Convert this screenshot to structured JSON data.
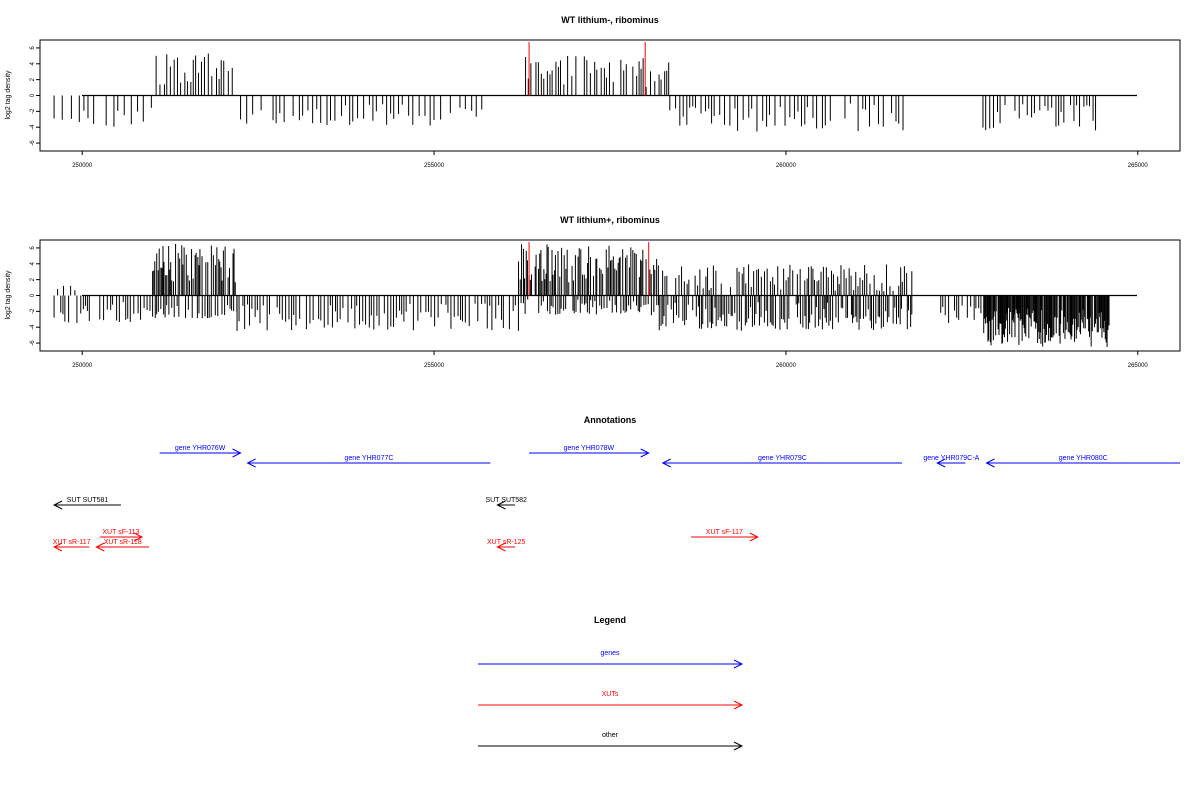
{
  "chart_data": [
    {
      "type": "bar",
      "title": "WT lithium-, ribominus",
      "ylabel": "log2 tag density",
      "xlabel": "",
      "xlim": [
        249400,
        265600
      ],
      "ylim": [
        -7,
        7
      ],
      "yticks": [
        -6,
        -4,
        -2,
        0,
        2,
        4,
        6
      ],
      "xticks": [
        250000,
        255000,
        260000,
        265000
      ],
      "markers": [
        256350,
        258000
      ],
      "colors": {
        "bars": "#000000",
        "markers": "#ff0000",
        "baseline": "#000000"
      },
      "positive_regions": [
        {
          "start": 251050,
          "end": 252170,
          "peak": 5.3,
          "step": 50,
          "min": 1.0
        },
        {
          "start": 256300,
          "end": 258350,
          "peak": 5.0,
          "step": 45,
          "min": 1.0
        }
      ],
      "negative_regions": [
        {
          "start": 249600,
          "end": 251000,
          "peak": -4.0,
          "step": 90,
          "min": -1.0
        },
        {
          "start": 252250,
          "end": 255700,
          "peak": -3.8,
          "step": 70,
          "min": -1.0
        },
        {
          "start": 258350,
          "end": 261800,
          "peak": -4.7,
          "step": 60,
          "min": -1.0
        },
        {
          "start": 262800,
          "end": 264400,
          "peak": -4.4,
          "step": 55,
          "min": -1.0
        }
      ],
      "seed": 7
    },
    {
      "type": "bar",
      "title": "WT lithium+, ribominus",
      "ylabel": "log2 tag density",
      "xlabel": "",
      "xlim": [
        249400,
        265600
      ],
      "ylim": [
        -7,
        7
      ],
      "yticks": [
        -6,
        -4,
        -2,
        0,
        2,
        4,
        6
      ],
      "xticks": [
        250000,
        255000,
        260000,
        265000
      ],
      "markers": [
        256350,
        258050
      ],
      "colors": {
        "bars": "#000000",
        "markers": "#ff0000",
        "baseline": "#000000"
      },
      "positive_regions": [
        {
          "start": 249650,
          "end": 250050,
          "peak": 1.5,
          "step": 80,
          "min": 0.3
        },
        {
          "start": 251000,
          "end": 252200,
          "peak": 6.5,
          "step": 22,
          "min": 1.5
        },
        {
          "start": 256200,
          "end": 258200,
          "peak": 6.5,
          "step": 20,
          "min": 1.5
        },
        {
          "start": 258200,
          "end": 261800,
          "peak": 4.0,
          "step": 35,
          "min": 0.5
        }
      ],
      "negative_regions": [
        {
          "start": 249600,
          "end": 251000,
          "peak": -3.6,
          "step": 45,
          "min": -0.8
        },
        {
          "start": 251000,
          "end": 252200,
          "peak": -3.0,
          "step": 30,
          "min": -0.8
        },
        {
          "start": 252200,
          "end": 256200,
          "peak": -4.5,
          "step": 40,
          "min": -0.8
        },
        {
          "start": 256200,
          "end": 258200,
          "peak": -2.5,
          "step": 30,
          "min": -0.5
        },
        {
          "start": 258200,
          "end": 261800,
          "peak": -4.5,
          "step": 25,
          "min": -0.8
        },
        {
          "start": 262200,
          "end": 262800,
          "peak": -3.5,
          "step": 40,
          "min": -0.8
        },
        {
          "start": 262800,
          "end": 264600,
          "peak": -6.5,
          "step": 12,
          "min": -1.5
        }
      ],
      "seed": 23
    },
    {
      "type": "annotation_track",
      "title": "Annotations",
      "xlim": [
        249400,
        265600
      ],
      "features": [
        {
          "label": "gene YHR076W",
          "start": 251100,
          "end": 252250,
          "strand": "+",
          "row": 0,
          "color": "#0000ff"
        },
        {
          "label": "gene YHR077C",
          "start": 252350,
          "end": 255800,
          "strand": "-",
          "row": 1,
          "color": "#0000ff"
        },
        {
          "label": "gene YHR078W",
          "start": 256350,
          "end": 258050,
          "strand": "+",
          "row": 0,
          "color": "#0000ff"
        },
        {
          "label": "gene YHR079C",
          "start": 258250,
          "end": 261650,
          "strand": "-",
          "row": 1,
          "color": "#0000ff"
        },
        {
          "label": "gene YHR079C-A",
          "start": 262150,
          "end": 262550,
          "strand": "-",
          "row": 1,
          "color": "#0000ff"
        },
        {
          "label": "gene YHR080C",
          "start": 262850,
          "end": 265600,
          "strand": "-",
          "row": 1,
          "color": "#0000ff"
        },
        {
          "label": "SUT SUT581",
          "start": 249600,
          "end": 250550,
          "strand": "-",
          "row": 2,
          "color": "#000000"
        },
        {
          "label": "SUT SUT582",
          "start": 255900,
          "end": 256150,
          "strand": "-",
          "row": 2,
          "color": "#000000"
        },
        {
          "label": "XUT sF-113",
          "start": 250250,
          "end": 250850,
          "strand": "+",
          "row": 3,
          "color": "#ff0000"
        },
        {
          "label": "XUT sR-117",
          "start": 249600,
          "end": 250100,
          "strand": "-",
          "row": 4,
          "color": "#ff0000"
        },
        {
          "label": "XUT sR-118",
          "start": 250200,
          "end": 250950,
          "strand": "-",
          "row": 4,
          "color": "#ff0000"
        },
        {
          "label": "XUT sR-125",
          "start": 255900,
          "end": 256150,
          "strand": "-",
          "row": 4,
          "color": "#ff0000"
        },
        {
          "label": "XUT sF-117",
          "start": 258650,
          "end": 259600,
          "strand": "+",
          "row": 3,
          "color": "#ff0000"
        }
      ]
    },
    {
      "type": "legend",
      "title": "Legend",
      "entries": [
        {
          "label": "genes",
          "color": "#0000ff"
        },
        {
          "label": "XUTs",
          "color": "#ff0000"
        },
        {
          "label": "other",
          "color": "#000000"
        }
      ]
    }
  ]
}
